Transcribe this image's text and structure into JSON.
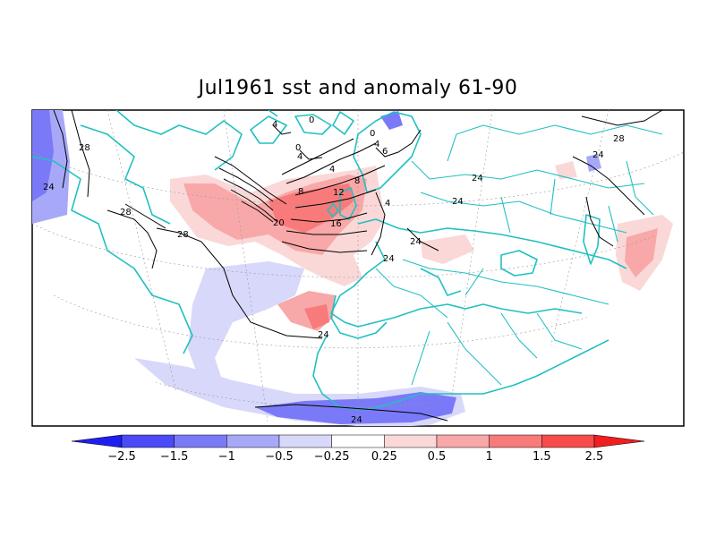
{
  "title": "Jul1961 sst and anomaly 61-90",
  "map": {
    "projection": "polar-stereographic sector",
    "region": "North Atlantic / Europe / North Africa",
    "coastline_color": "#22c0c0",
    "contour_field": "sst",
    "contour_color": "#000000",
    "shaded_field": "anomaly",
    "contour_labels": [
      "0",
      "4",
      "4",
      "8",
      "4",
      "8",
      "12",
      "16",
      "20",
      "24",
      "28",
      "28",
      "28",
      "28",
      "24",
      "24",
      "24",
      "24",
      "24",
      "24",
      "24",
      "0",
      "4",
      "6",
      "0",
      "4"
    ]
  },
  "colorbar": {
    "tick_labels": [
      "-2.5",
      "-1.5",
      "-1",
      "-0.5",
      "-0.25",
      "0.25",
      "0.5",
      "1",
      "1.5",
      "2.5"
    ],
    "colors": [
      "#1e1ef0",
      "#4a4af8",
      "#7a7af8",
      "#a8a8f8",
      "#d8d8fa",
      "#ffffff",
      "#fad8d8",
      "#f8a8a8",
      "#f87a7a",
      "#f84a4a",
      "#f01e1e"
    ]
  }
}
